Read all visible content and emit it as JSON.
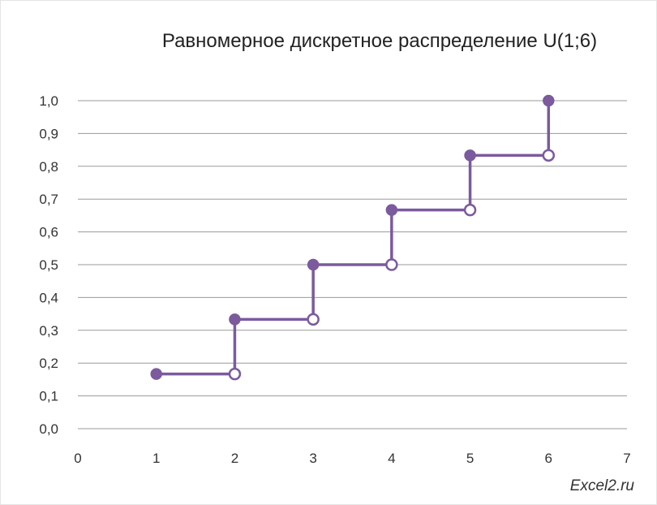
{
  "chart_data": {
    "type": "line",
    "title": "Равномерное дискретное распределение U(1;6)",
    "xlabel": "",
    "ylabel": "",
    "xlim": [
      0,
      7
    ],
    "ylim": [
      0,
      1
    ],
    "x_ticks": [
      0,
      1,
      2,
      3,
      4,
      5,
      6,
      7
    ],
    "x_tick_labels": [
      "0",
      "1",
      "2",
      "3",
      "4",
      "5",
      "6",
      "7"
    ],
    "y_ticks": [
      0,
      0.1,
      0.2,
      0.3,
      0.4,
      0.5,
      0.6,
      0.7,
      0.8,
      0.9,
      1.0
    ],
    "y_tick_labels": [
      "0,0",
      "0,1",
      "0,2",
      "0,3",
      "0,4",
      "0,5",
      "0,6",
      "0,7",
      "0,8",
      "0,9",
      "1,0"
    ],
    "grid": "horizontal",
    "series_color": "#7b5a9e",
    "steps": [
      {
        "x_start": 1,
        "x_end": 2,
        "y": 0.1667
      },
      {
        "x_start": 2,
        "x_end": 3,
        "y": 0.3333
      },
      {
        "x_start": 3,
        "x_end": 4,
        "y": 0.5
      },
      {
        "x_start": 4,
        "x_end": 5,
        "y": 0.6667
      },
      {
        "x_start": 5,
        "x_end": 6,
        "y": 0.8333
      }
    ],
    "closed_points": [
      {
        "x": 1,
        "y": 0.1667
      },
      {
        "x": 2,
        "y": 0.3333
      },
      {
        "x": 3,
        "y": 0.5
      },
      {
        "x": 4,
        "y": 0.6667
      },
      {
        "x": 5,
        "y": 0.8333
      },
      {
        "x": 6,
        "y": 1.0
      }
    ],
    "open_points": [
      {
        "x": 2,
        "y": 0.1667
      },
      {
        "x": 3,
        "y": 0.3333
      },
      {
        "x": 4,
        "y": 0.5
      },
      {
        "x": 5,
        "y": 0.6667
      },
      {
        "x": 6,
        "y": 0.8333
      }
    ]
  },
  "watermark": "Excel2.ru"
}
